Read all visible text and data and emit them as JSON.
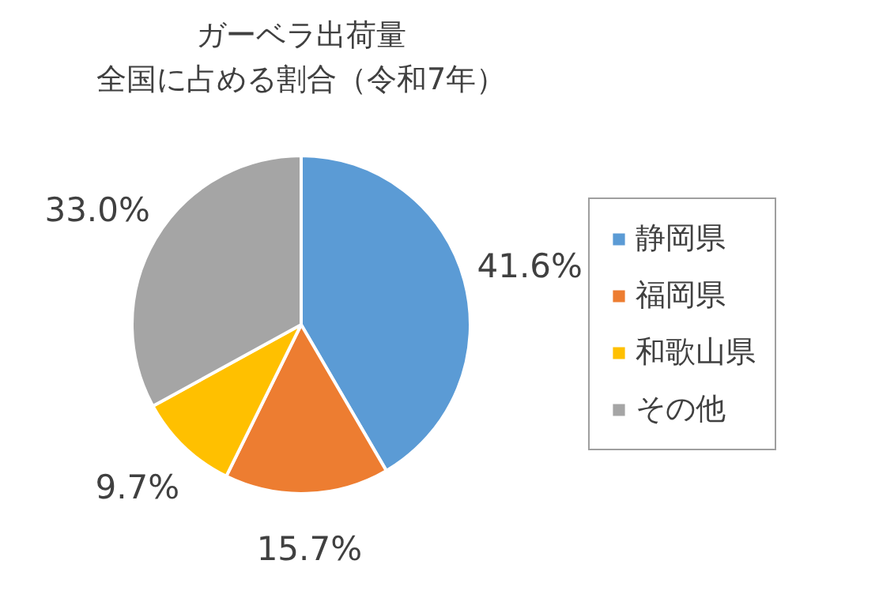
{
  "chart_data": {
    "type": "pie",
    "title": "ガーベラ出荷量",
    "subtitle": "全国に占める割合（令和7年）",
    "categories": [
      "静岡県",
      "福岡県",
      "和歌山県",
      "その他"
    ],
    "values": [
      41.6,
      15.7,
      9.7,
      33.0
    ],
    "value_labels": [
      "41.6%",
      "15.7%",
      "9.7%",
      "33.0%"
    ],
    "colors": [
      "#5b9bd5",
      "#ed7d31",
      "#ffc000",
      "#a5a5a5"
    ],
    "legend": "right"
  }
}
